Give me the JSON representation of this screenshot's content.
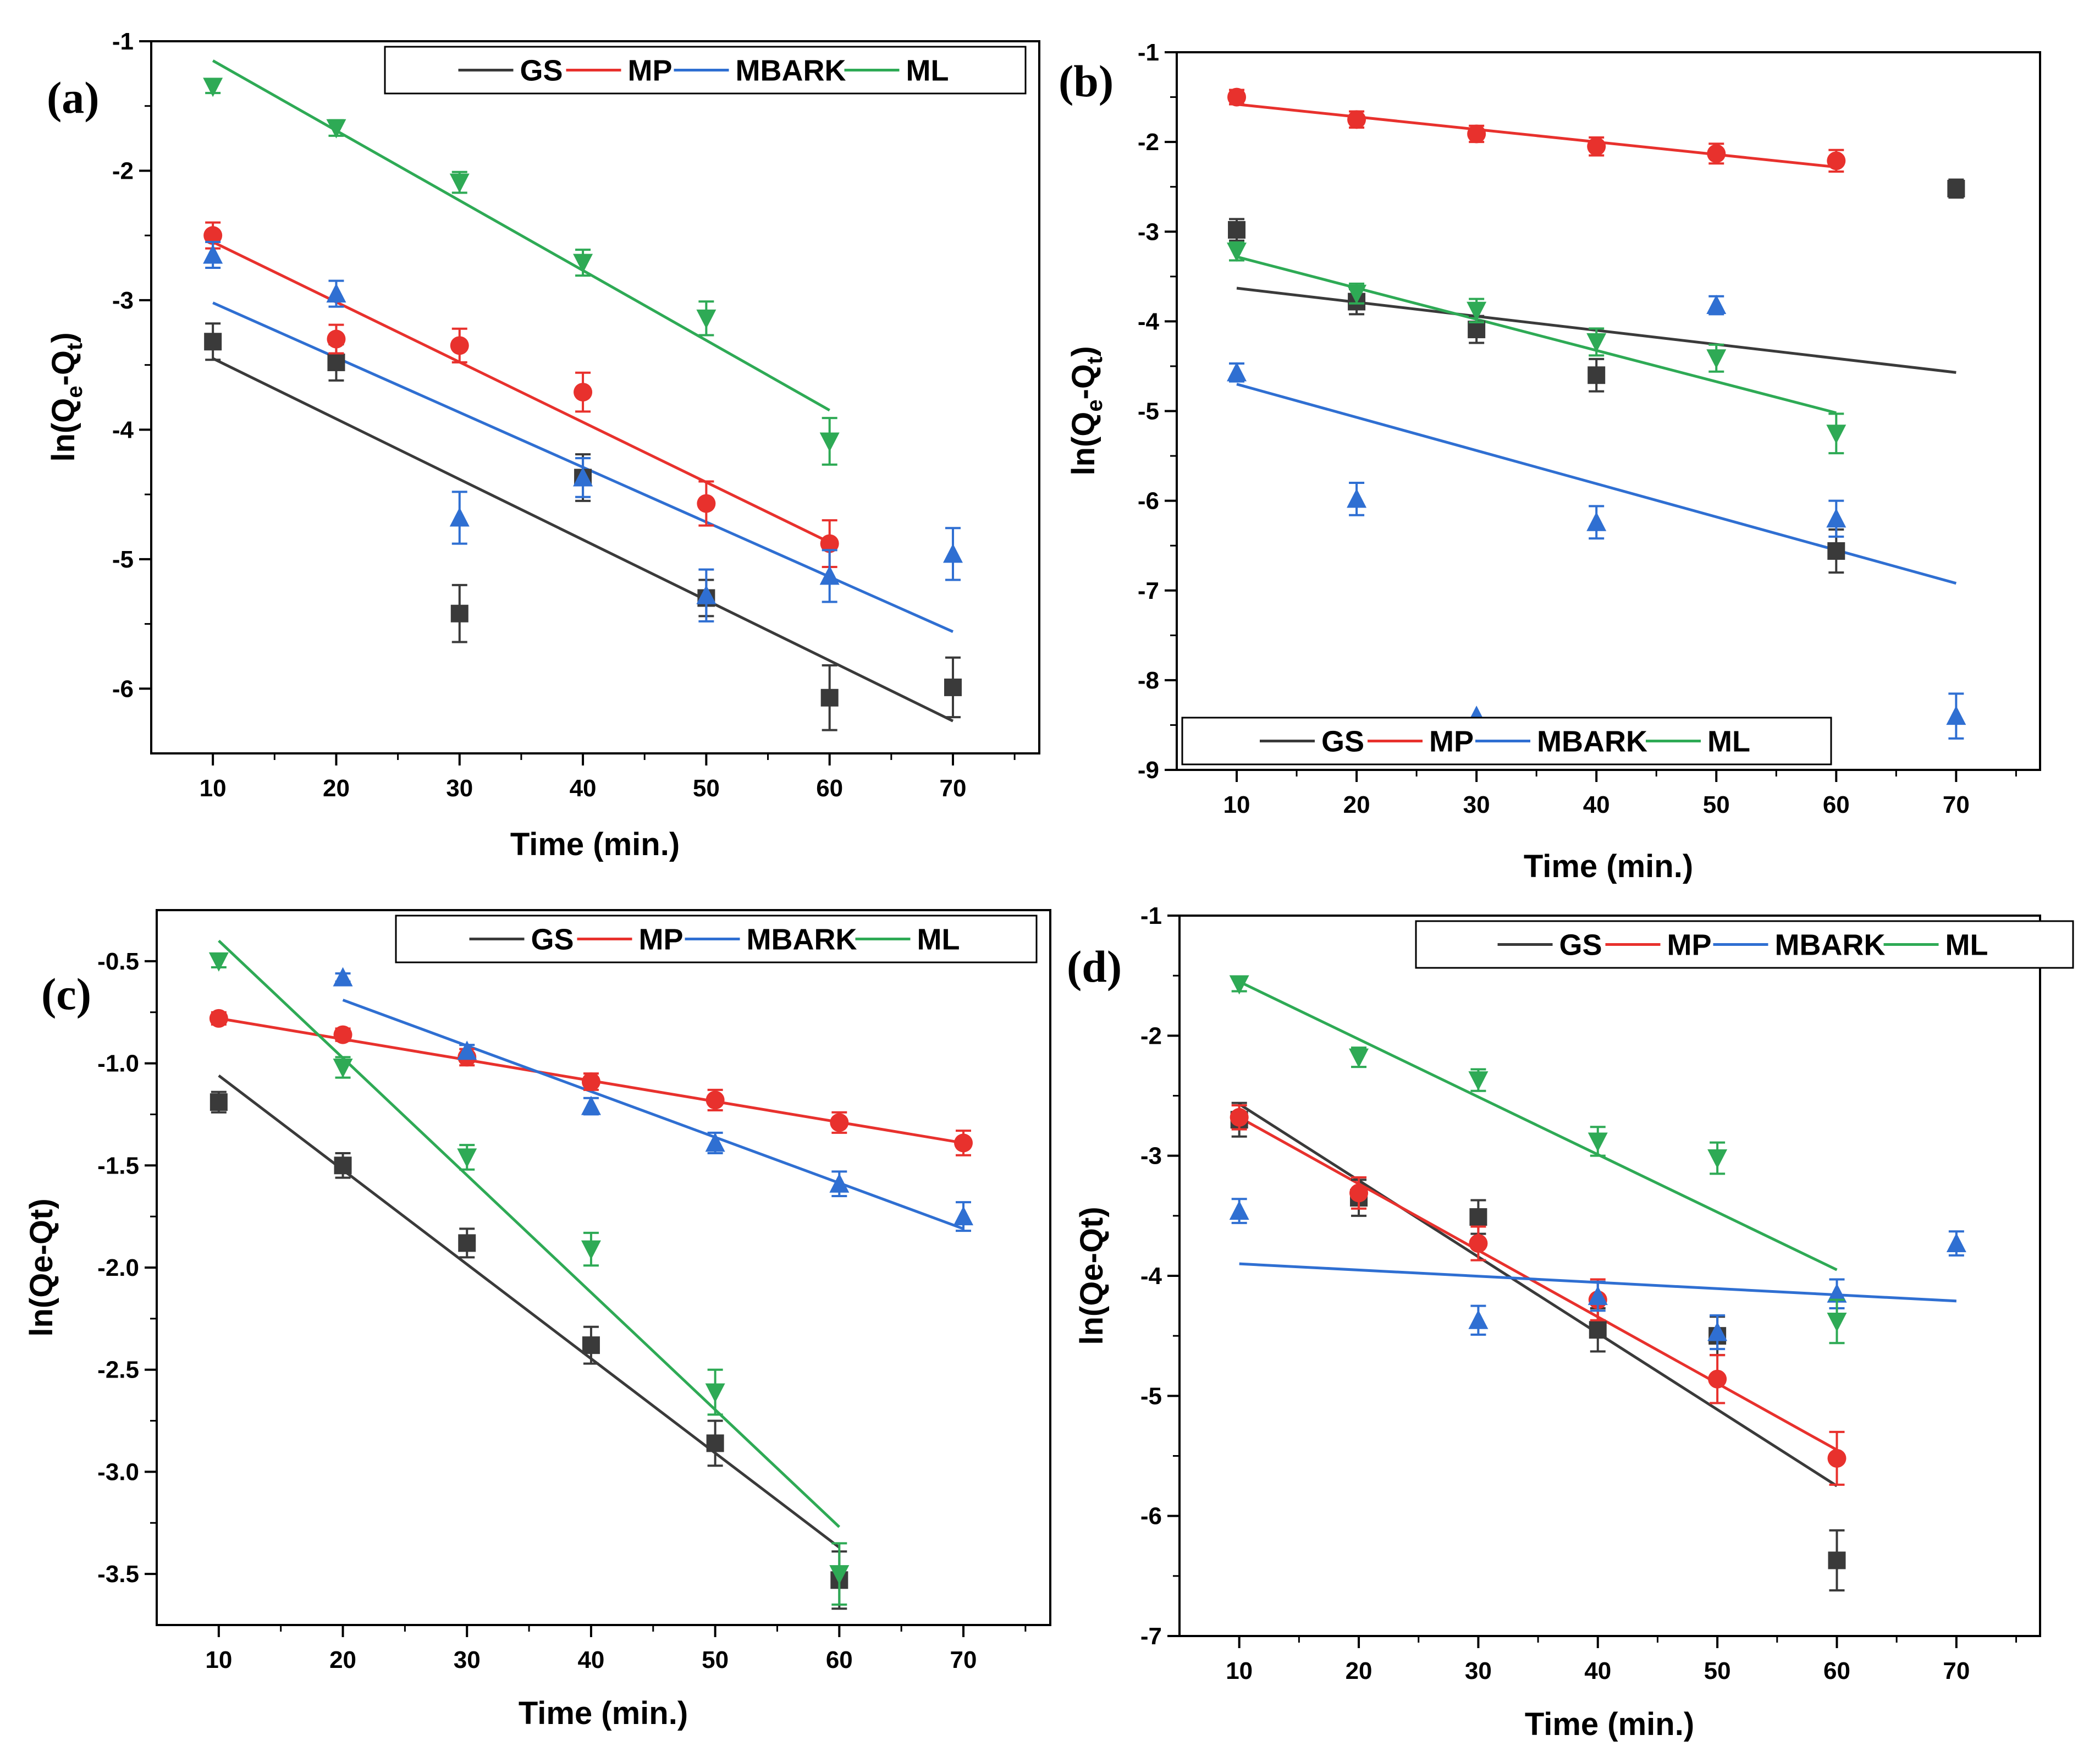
{
  "series_colors": {
    "GS": "#3a3a3a",
    "MP": "#e8312d",
    "MBARK": "#2f6fd2",
    "ML": "#2eaa55"
  },
  "chart_data": [
    {
      "type": "scatter",
      "panel": "(a)",
      "xlabel": "Time (min.)",
      "ylabel": "ln(Q_e-Q_t)",
      "ylabel_main": "ln(Q",
      "ylabel_sub1": "e",
      "ylabel_mid": "-Q",
      "ylabel_sub2": "t",
      "ylabel_end": ")",
      "xlim": [
        5,
        77
      ],
      "ylim": [
        -6.5,
        -1
      ],
      "xticks": [
        10,
        20,
        30,
        40,
        50,
        60,
        70
      ],
      "yticks": [
        -1,
        -2,
        -3,
        -4,
        -5,
        -6
      ],
      "xtick_labels": [
        "10",
        "20",
        "30",
        "40",
        "50",
        "60",
        "70"
      ],
      "ytick_labels": [
        "-1",
        "-2",
        "-3",
        "-4",
        "-5",
        "-6"
      ],
      "legend": "top-right",
      "legend_labels": [
        "GS",
        "MP",
        "MBARK",
        "ML"
      ],
      "series": [
        {
          "name": "GS",
          "marker": "square",
          "x": [
            10,
            20,
            30,
            40,
            50,
            60,
            70
          ],
          "y": [
            -3.32,
            -3.48,
            -5.42,
            -4.37,
            -5.3,
            -6.07,
            -5.99
          ],
          "err": [
            0.14,
            0.14,
            0.22,
            0.18,
            0.14,
            0.25,
            0.23
          ],
          "fit": [
            [
              10,
              -3.45
            ],
            [
              70,
              -6.25
            ]
          ]
        },
        {
          "name": "MP",
          "marker": "circle",
          "x": [
            10,
            20,
            30,
            40,
            50,
            60
          ],
          "y": [
            -2.5,
            -3.3,
            -3.35,
            -3.71,
            -4.57,
            -4.88
          ],
          "err": [
            0.1,
            0.11,
            0.13,
            0.15,
            0.17,
            0.18
          ],
          "fit": [
            [
              10,
              -2.55
            ],
            [
              60,
              -4.87
            ]
          ]
        },
        {
          "name": "MBARK",
          "marker": "triangle-up",
          "x": [
            10,
            20,
            30,
            40,
            50,
            60,
            70
          ],
          "y": [
            -2.65,
            -2.95,
            -4.68,
            -4.37,
            -5.28,
            -5.13,
            -4.96
          ],
          "err": [
            0.1,
            0.1,
            0.2,
            0.15,
            0.2,
            0.2,
            0.2
          ],
          "fit": [
            [
              10,
              -3.02
            ],
            [
              70,
              -5.56
            ]
          ]
        },
        {
          "name": "ML",
          "marker": "triangle-down",
          "x": [
            10,
            20,
            30,
            40,
            50,
            60
          ],
          "y": [
            -1.35,
            -1.67,
            -2.09,
            -2.71,
            -3.14,
            -4.09
          ],
          "err": [
            0.05,
            0.06,
            0.08,
            0.1,
            0.13,
            0.18
          ],
          "fit": [
            [
              10,
              -1.15
            ],
            [
              60,
              -3.85
            ]
          ]
        }
      ]
    },
    {
      "type": "scatter",
      "panel": "(b)",
      "xlabel": "Time (min.)",
      "ylabel": "ln(Q_e-Q_t)",
      "ylabel_main": "ln(Q",
      "ylabel_sub1": "e",
      "ylabel_mid": "-Q",
      "ylabel_sub2": "t",
      "ylabel_end": ")",
      "xlim": [
        5,
        77
      ],
      "ylim": [
        -9,
        -1
      ],
      "xticks": [
        10,
        20,
        30,
        40,
        50,
        60,
        70
      ],
      "yticks": [
        -1,
        -2,
        -3,
        -4,
        -5,
        -6,
        -7,
        -8,
        -9
      ],
      "xtick_labels": [
        "10",
        "20",
        "30",
        "40",
        "50",
        "60",
        "70"
      ],
      "ytick_labels": [
        "-1",
        "-2",
        "-3",
        "-4",
        "-5",
        "-6",
        "-7",
        "-8",
        "-9"
      ],
      "legend": "bottom-left",
      "legend_labels": [
        "GS",
        "MP",
        "MBARK",
        "ML"
      ],
      "series": [
        {
          "name": "GS",
          "marker": "square",
          "x": [
            10,
            20,
            30,
            40,
            60,
            70
          ],
          "y": [
            -2.98,
            -3.78,
            -4.09,
            -4.6,
            -6.56,
            -2.52
          ],
          "err": [
            0.12,
            0.14,
            0.15,
            0.18,
            0.24,
            0.1
          ],
          "fit": [
            [
              10,
              -3.63
            ],
            [
              70,
              -4.57
            ]
          ]
        },
        {
          "name": "MP",
          "marker": "circle",
          "x": [
            10,
            20,
            30,
            40,
            50,
            60
          ],
          "y": [
            -1.5,
            -1.75,
            -1.91,
            -2.05,
            -2.13,
            -2.21
          ],
          "err": [
            0.08,
            0.09,
            0.09,
            0.1,
            0.11,
            0.12
          ],
          "fit": [
            [
              10,
              -1.58
            ],
            [
              60,
              -2.28
            ]
          ]
        },
        {
          "name": "MBARK",
          "marker": "triangle-up",
          "x": [
            10,
            20,
            30,
            40,
            50,
            60,
            70
          ],
          "y": [
            -4.57,
            -5.98,
            -8.4,
            -6.24,
            -3.82,
            -6.2,
            -8.4
          ],
          "err": [
            0.1,
            0.18,
            0.0,
            0.18,
            0.1,
            0.2,
            0.25
          ],
          "fit": [
            [
              10,
              -4.7
            ],
            [
              70,
              -6.92
            ]
          ]
        },
        {
          "name": "ML",
          "marker": "triangle-down",
          "x": [
            10,
            20,
            30,
            40,
            50,
            60
          ],
          "y": [
            -3.22,
            -3.69,
            -3.88,
            -4.23,
            -4.41,
            -5.25
          ],
          "err": [
            0.1,
            0.11,
            0.13,
            0.15,
            0.15,
            0.22
          ],
          "fit": [
            [
              10,
              -3.28
            ],
            [
              60,
              -5.02
            ]
          ]
        }
      ]
    },
    {
      "type": "scatter",
      "panel": "(c)",
      "xlabel": "Time (min.)",
      "ylabel": "ln(Qe-Qt)",
      "xlim": [
        5,
        77
      ],
      "ylim": [
        -3.75,
        -0.25
      ],
      "xticks": [
        10,
        20,
        30,
        40,
        50,
        60,
        70
      ],
      "yticks": [
        -0.5,
        -1.0,
        -1.5,
        -2.0,
        -2.5,
        -3.0,
        -3.5
      ],
      "xtick_labels": [
        "10",
        "20",
        "30",
        "40",
        "50",
        "60",
        "70"
      ],
      "ytick_labels": [
        "-0.5",
        "-1.0",
        "-1.5",
        "-2.0",
        "-2.5",
        "-3.0",
        "-3.5"
      ],
      "legend": "top-right",
      "legend_labels": [
        "GS",
        "MP",
        "MBARK",
        "ML"
      ],
      "series": [
        {
          "name": "GS",
          "marker": "square",
          "x": [
            10,
            20,
            30,
            40,
            50,
            60
          ],
          "y": [
            -1.19,
            -1.5,
            -1.88,
            -2.38,
            -2.86,
            -3.53
          ],
          "err": [
            0.05,
            0.06,
            0.07,
            0.09,
            0.11,
            0.14
          ],
          "fit": [
            [
              10,
              -1.06
            ],
            [
              60,
              -3.37
            ]
          ]
        },
        {
          "name": "MP",
          "marker": "circle",
          "x": [
            10,
            20,
            30,
            40,
            50,
            60,
            70
          ],
          "y": [
            -0.78,
            -0.86,
            -0.97,
            -1.09,
            -1.18,
            -1.29,
            -1.39
          ],
          "err": [
            0.03,
            0.03,
            0.04,
            0.04,
            0.05,
            0.05,
            0.06
          ],
          "fit": [
            [
              10,
              -0.78
            ],
            [
              70,
              -1.39
            ]
          ]
        },
        {
          "name": "MBARK",
          "marker": "triangle-up",
          "x": [
            20,
            30,
            40,
            50,
            60,
            70
          ],
          "y": [
            -0.58,
            -0.94,
            -1.21,
            -1.39,
            -1.59,
            -1.75
          ],
          "err": [
            0.02,
            0.03,
            0.04,
            0.05,
            0.06,
            0.07
          ],
          "fit": [
            [
              20,
              -0.69
            ],
            [
              70,
              -1.81
            ]
          ]
        },
        {
          "name": "ML",
          "marker": "triangle-down",
          "x": [
            10,
            20,
            30,
            40,
            50,
            60
          ],
          "y": [
            -0.5,
            -1.02,
            -1.46,
            -1.91,
            -2.61,
            -3.5
          ],
          "err": [
            0.03,
            0.05,
            0.06,
            0.08,
            0.11,
            0.15
          ],
          "fit": [
            [
              10,
              -0.4
            ],
            [
              60,
              -3.27
            ]
          ]
        }
      ]
    },
    {
      "type": "scatter",
      "panel": "(d)",
      "xlabel": "Time (min.)",
      "ylabel": "ln(Qe-Qt)",
      "xlim": [
        5,
        77
      ],
      "ylim": [
        -7,
        -1
      ],
      "xticks": [
        10,
        20,
        30,
        40,
        50,
        60,
        70
      ],
      "yticks": [
        -1,
        -2,
        -3,
        -4,
        -5,
        -6,
        -7
      ],
      "xtick_labels": [
        "10",
        "20",
        "30",
        "40",
        "50",
        "60",
        "70"
      ],
      "ytick_labels": [
        "-1",
        "-2",
        "-3",
        "-4",
        "-5",
        "-6",
        "-7"
      ],
      "legend": "top-right",
      "legend_labels": [
        "GS",
        "MP",
        "MBARK",
        "ML"
      ],
      "series": [
        {
          "name": "GS",
          "marker": "square",
          "x": [
            10,
            20,
            30,
            40,
            50,
            60
          ],
          "y": [
            -2.7,
            -3.35,
            -3.51,
            -4.45,
            -4.5,
            -6.37
          ],
          "err": [
            0.14,
            0.15,
            0.14,
            0.18,
            0.16,
            0.25
          ],
          "fit": [
            [
              10,
              -2.57
            ],
            [
              60,
              -5.75
            ]
          ]
        },
        {
          "name": "MP",
          "marker": "circle",
          "x": [
            10,
            20,
            30,
            40,
            50,
            60
          ],
          "y": [
            -2.68,
            -3.31,
            -3.73,
            -4.2,
            -4.86,
            -5.52
          ],
          "err": [
            0.1,
            0.13,
            0.14,
            0.17,
            0.2,
            0.22
          ],
          "fit": [
            [
              10,
              -2.68
            ],
            [
              60,
              -5.45
            ]
          ]
        },
        {
          "name": "MBARK",
          "marker": "triangle-up",
          "x": [
            10,
            30,
            40,
            50,
            60,
            70
          ],
          "y": [
            -3.46,
            -4.37,
            -4.17,
            -4.47,
            -4.15,
            -3.73
          ],
          "err": [
            0.1,
            0.12,
            0.12,
            0.14,
            0.12,
            0.1
          ],
          "fit": [
            [
              10,
              -3.9
            ],
            [
              70,
              -4.21
            ]
          ]
        },
        {
          "name": "ML",
          "marker": "triangle-down",
          "x": [
            10,
            20,
            30,
            40,
            50,
            60
          ],
          "y": [
            -1.57,
            -2.18,
            -2.37,
            -2.88,
            -3.02,
            -4.38
          ],
          "err": [
            0.06,
            0.08,
            0.09,
            0.12,
            0.13,
            0.18
          ],
          "fit": [
            [
              10,
              -1.55
            ],
            [
              60,
              -3.95
            ]
          ]
        }
      ]
    }
  ]
}
